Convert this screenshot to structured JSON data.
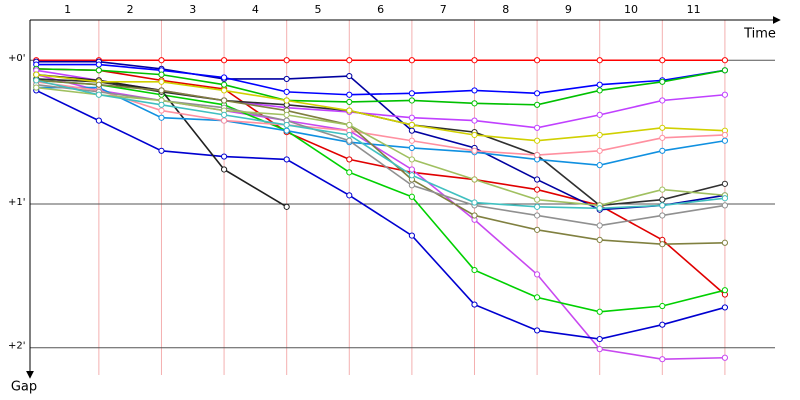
{
  "chart_data": {
    "type": "line",
    "x_label": "Time",
    "y_label": "Gap",
    "x": [
      0,
      1,
      2,
      3,
      4,
      5,
      6,
      7,
      8,
      9,
      10,
      11
    ],
    "xlim": [
      -0.1,
      11.8
    ],
    "xticks": [
      {
        "value": 0.5,
        "label": "1"
      },
      {
        "value": 1.5,
        "label": "2"
      },
      {
        "value": 2.5,
        "label": "3"
      },
      {
        "value": 3.5,
        "label": "4"
      },
      {
        "value": 4.5,
        "label": "5"
      },
      {
        "value": 5.5,
        "label": "6"
      },
      {
        "value": 6.5,
        "label": "7"
      },
      {
        "value": 7.5,
        "label": "8"
      },
      {
        "value": 8.5,
        "label": "9"
      },
      {
        "value": 9.5,
        "label": "10"
      },
      {
        "value": 10.5,
        "label": "11"
      }
    ],
    "ylim": [
      -0.28,
      2.19
    ],
    "y_inverted": true,
    "yticks": [
      {
        "value": 0,
        "label": "+0'"
      },
      {
        "value": 1,
        "label": "+1'"
      },
      {
        "value": 2,
        "label": "+2'"
      }
    ],
    "grid": true,
    "series": [
      {
        "color": "#ff0000",
        "values": [
          0,
          0,
          0,
          0,
          0,
          0,
          0,
          0,
          0,
          0,
          0,
          0
        ]
      },
      {
        "color": "#e00000",
        "values": [
          0.06,
          0.07,
          0.14,
          0.2,
          0.5,
          0.69,
          0.78,
          0.83,
          0.9,
          1.01,
          1.25,
          1.63
        ]
      },
      {
        "color": "#0000a0",
        "values": [
          0.01,
          0.01,
          0.06,
          0.13,
          0.13,
          0.11,
          0.49,
          0.61,
          0.83,
          1.04,
          1.01,
          0.94
        ]
      },
      {
        "color": "#0000ff",
        "values": [
          0.03,
          0.03,
          0.07,
          0.12,
          0.22,
          0.24,
          0.23,
          0.21,
          0.23,
          0.17,
          0.14,
          0.07
        ]
      },
      {
        "color": "#00c000",
        "values": [
          0.06,
          0.07,
          0.1,
          0.17,
          0.28,
          0.29,
          0.28,
          0.3,
          0.31,
          0.21,
          0.15,
          0.07
        ]
      },
      {
        "color": "#c040ff",
        "values": [
          0.07,
          0.14,
          0.21,
          0.28,
          0.33,
          0.36,
          0.4,
          0.42,
          0.47,
          0.38,
          0.28,
          0.24
        ]
      },
      {
        "color": "#c848f0",
        "values": [
          0.1,
          0.21,
          0.28,
          0.35,
          0.42,
          0.49,
          0.76,
          1.11,
          1.49,
          2.01,
          2.08,
          2.07
        ]
      },
      {
        "color": "#0000d0",
        "values": [
          0.21,
          0.42,
          0.63,
          0.67,
          0.69,
          0.94,
          1.22,
          1.7,
          1.88,
          1.94,
          1.84,
          1.72
        ]
      },
      {
        "color": "#00d000",
        "values": [
          0.14,
          0.17,
          0.24,
          0.31,
          0.49,
          0.78,
          0.95,
          1.46,
          1.65,
          1.75,
          1.71,
          1.6
        ]
      },
      {
        "color": "#202020",
        "values": [
          0.1,
          0.14,
          0.21,
          0.76,
          1.02,
          null,
          null,
          null,
          null,
          null,
          null,
          null
        ]
      },
      {
        "color": "#303030",
        "values": [
          0.13,
          0.15,
          0.22,
          0.28,
          0.31,
          0.35,
          0.45,
          0.5,
          0.66,
          1.01,
          0.97,
          0.86
        ]
      },
      {
        "color": "#1090e0",
        "values": [
          0.19,
          0.19,
          0.4,
          0.42,
          0.49,
          0.57,
          0.61,
          0.64,
          0.69,
          0.73,
          0.63,
          0.56
        ]
      },
      {
        "color": "#d0d000",
        "values": [
          0.1,
          0.15,
          0.15,
          0.21,
          0.28,
          0.35,
          0.45,
          0.52,
          0.56,
          0.52,
          0.47,
          0.49
        ]
      },
      {
        "color": "#ff90a0",
        "values": [
          0.15,
          0.21,
          0.35,
          0.42,
          0.45,
          0.49,
          0.56,
          0.63,
          0.66,
          0.63,
          0.54,
          0.52
        ]
      },
      {
        "color": "#808040",
        "values": [
          0.14,
          0.17,
          0.21,
          0.28,
          0.35,
          0.45,
          0.83,
          1.08,
          1.18,
          1.25,
          1.28,
          1.27
        ]
      },
      {
        "color": "#909090",
        "values": [
          0.17,
          0.22,
          0.28,
          0.33,
          0.42,
          0.56,
          0.87,
          1.01,
          1.08,
          1.15,
          1.08,
          1.01
        ]
      },
      {
        "color": "#a0c060",
        "values": [
          0.19,
          0.24,
          0.28,
          0.35,
          0.38,
          0.45,
          0.69,
          0.83,
          0.97,
          1.01,
          0.9,
          0.94
        ]
      },
      {
        "color": "#40c0c0",
        "values": [
          0.14,
          0.24,
          0.31,
          0.38,
          0.45,
          0.52,
          0.8,
          0.99,
          1.02,
          1.03,
          1.01,
          0.96
        ]
      }
    ]
  }
}
